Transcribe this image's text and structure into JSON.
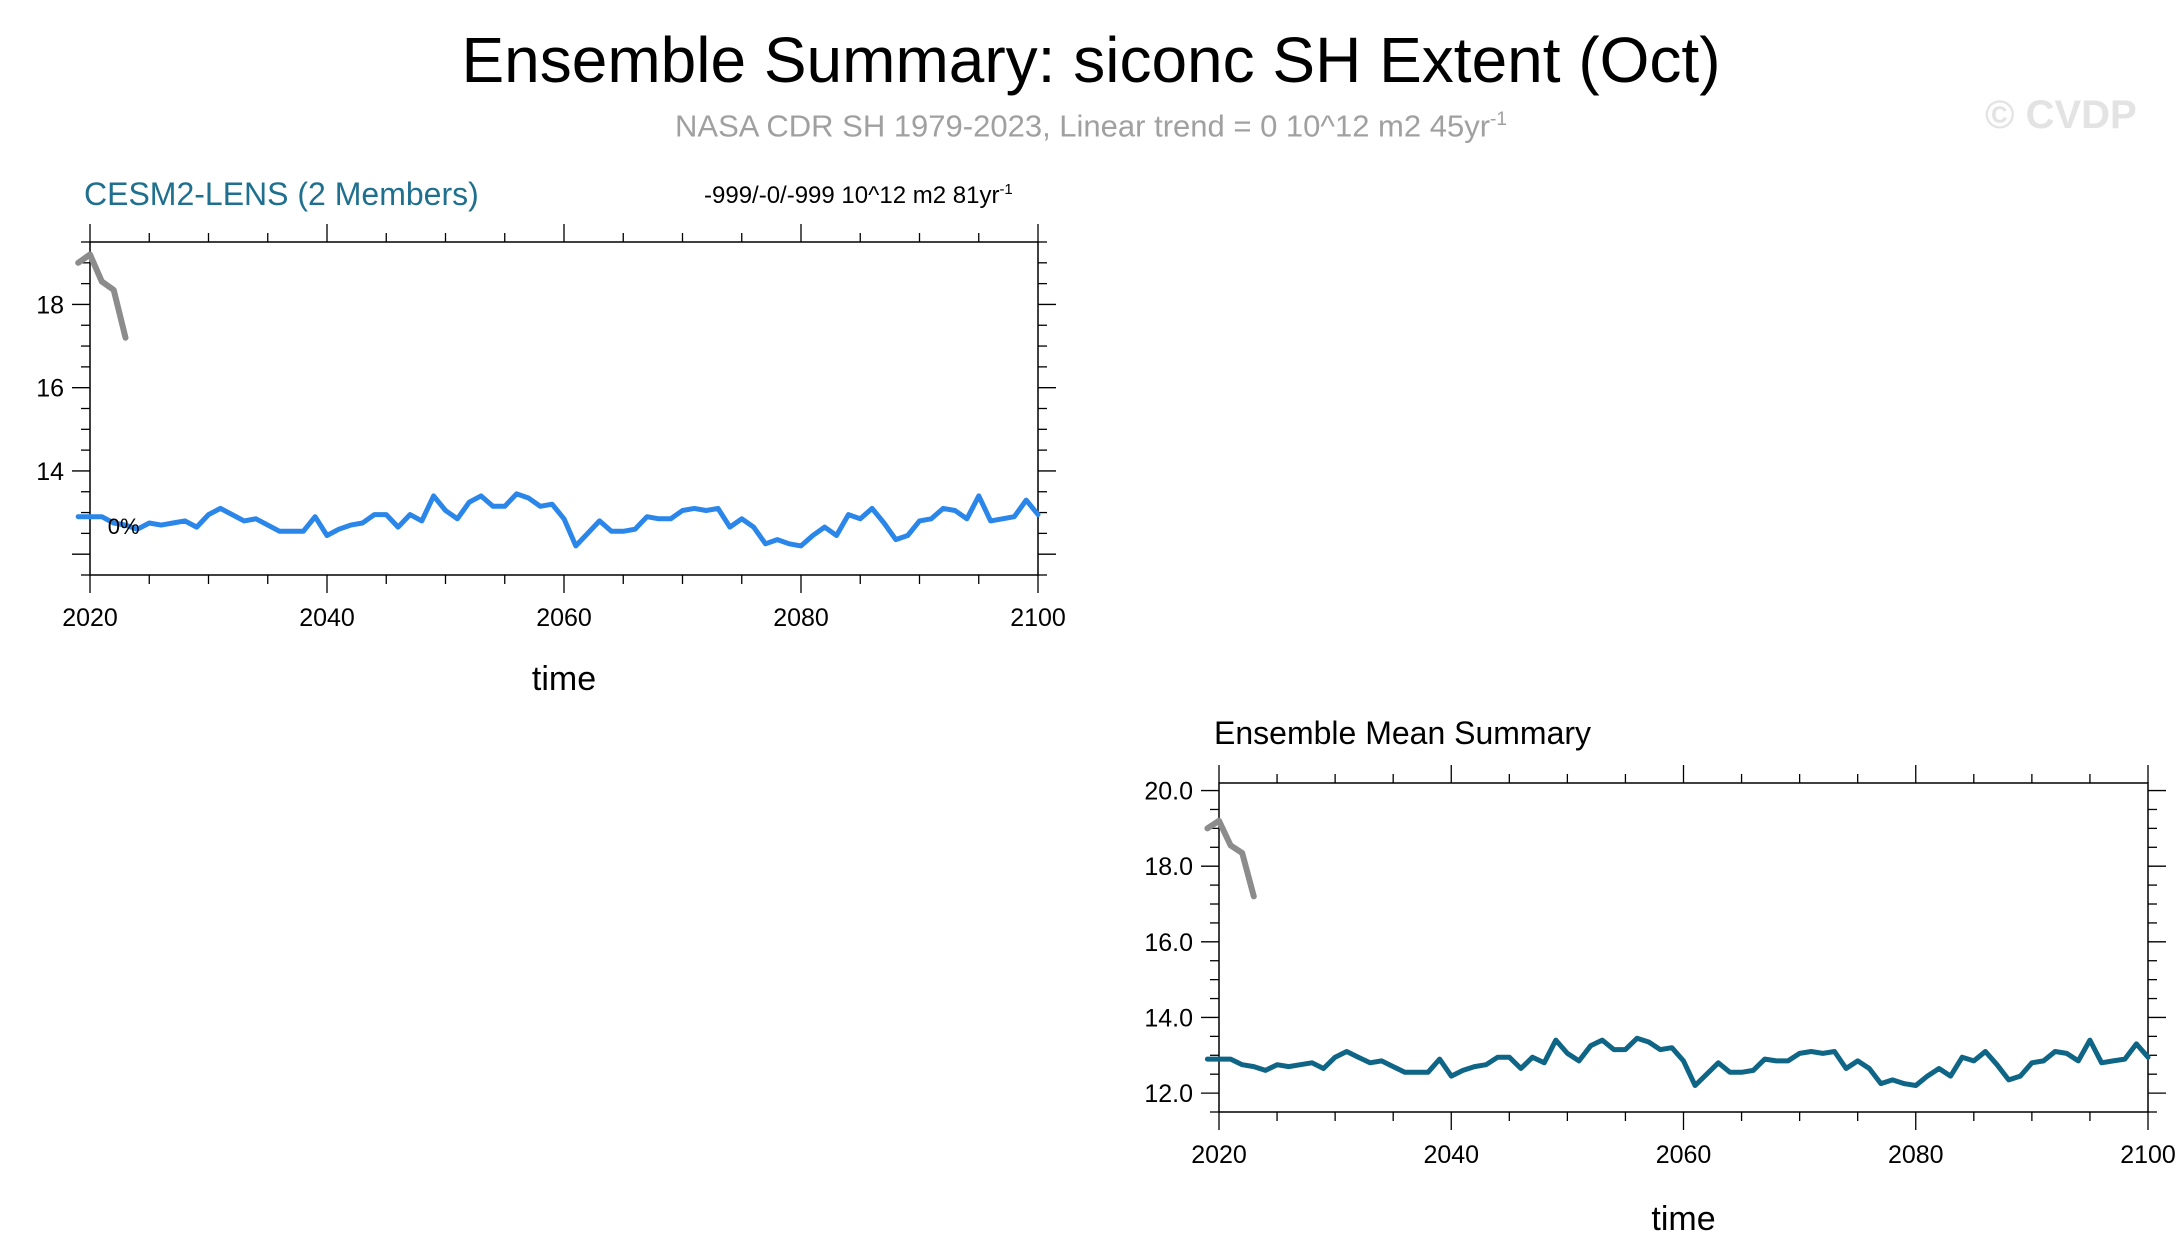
{
  "header": {
    "title": "Ensemble Summary: siconc SH Extent (Oct)",
    "subtitle": "NASA CDR SH 1979-2023, Linear trend = 0 10^12 m2 45yr",
    "subtitle_sup": "-1",
    "watermark": "© CVDP"
  },
  "colors": {
    "observations": "#8c8c8c",
    "member_series": "#2a86e8",
    "ensemble_mean": "#0f6585",
    "panel1_title": "#1f6f8f"
  },
  "chart_data": [
    {
      "type": "line",
      "title": "CESM2-LENS (2 Members)",
      "trend_label": "-999/-0/-999 10^12 m2 81yr",
      "trend_label_sup": "-1",
      "annotation": "0%",
      "xlabel": "time",
      "ylabel": "",
      "xlim": [
        2020,
        2100
      ],
      "ylim": [
        11.5,
        19.5
      ],
      "xticks": [
        "2020",
        "2040",
        "2060",
        "2080",
        "2100"
      ],
      "yticks": [
        "14",
        "16",
        "18"
      ],
      "grid": false,
      "series": [
        {
          "color": "#8c8c8c",
          "x": [
            2019,
            2020,
            2021,
            2022,
            2023
          ],
          "y": [
            19.0,
            19.2,
            18.55,
            18.35,
            17.2
          ]
        },
        {
          "color": "#2a86e8",
          "x": [
            2019,
            2020,
            2021,
            2022,
            2023,
            2024,
            2025,
            2026,
            2027,
            2028,
            2029,
            2030,
            2031,
            2032,
            2033,
            2034,
            2035,
            2036,
            2037,
            2038,
            2039,
            2040,
            2041,
            2042,
            2043,
            2044,
            2045,
            2046,
            2047,
            2048,
            2049,
            2050,
            2051,
            2052,
            2053,
            2054,
            2055,
            2056,
            2057,
            2058,
            2059,
            2060,
            2061,
            2062,
            2063,
            2064,
            2065,
            2066,
            2067,
            2068,
            2069,
            2070,
            2071,
            2072,
            2073,
            2074,
            2075,
            2076,
            2077,
            2078,
            2079,
            2080,
            2081,
            2082,
            2083,
            2084,
            2085,
            2086,
            2087,
            2088,
            2089,
            2090,
            2091,
            2092,
            2093,
            2094,
            2095,
            2096,
            2097,
            2098,
            2099,
            2100
          ],
          "y": [
            12.9,
            12.9,
            12.9,
            12.75,
            12.7,
            12.6,
            12.75,
            12.7,
            12.75,
            12.8,
            12.65,
            12.95,
            13.1,
            12.95,
            12.8,
            12.85,
            12.7,
            12.55,
            12.55,
            12.55,
            12.9,
            12.45,
            12.6,
            12.7,
            12.75,
            12.95,
            12.95,
            12.65,
            12.95,
            12.8,
            13.4,
            13.05,
            12.85,
            13.25,
            13.4,
            13.15,
            13.15,
            13.45,
            13.35,
            13.15,
            13.2,
            12.85,
            12.2,
            12.5,
            12.8,
            12.55,
            12.55,
            12.6,
            12.9,
            12.85,
            12.85,
            13.05,
            13.1,
            13.05,
            13.1,
            12.65,
            12.85,
            12.65,
            12.25,
            12.35,
            12.25,
            12.2,
            12.45,
            12.65,
            12.45,
            12.95,
            12.85,
            13.1,
            12.75,
            12.35,
            12.45,
            12.8,
            12.85,
            13.1,
            13.05,
            12.85,
            13.4,
            12.8,
            12.85,
            12.9,
            13.3,
            12.95
          ]
        }
      ]
    },
    {
      "type": "line",
      "title": "Ensemble Mean Summary",
      "xlabel": "time",
      "ylabel": "",
      "xlim": [
        2020,
        2100
      ],
      "ylim": [
        11.5,
        20.2
      ],
      "xticks": [
        "2020",
        "2040",
        "2060",
        "2080",
        "2100"
      ],
      "yticks": [
        "12.0",
        "14.0",
        "16.0",
        "18.0",
        "20.0"
      ],
      "grid": false,
      "series": [
        {
          "color": "#8c8c8c",
          "x": [
            2019,
            2020,
            2021,
            2022,
            2023
          ],
          "y": [
            19.0,
            19.2,
            18.55,
            18.35,
            17.2
          ]
        },
        {
          "color": "#0f6585",
          "x": [
            2019,
            2020,
            2021,
            2022,
            2023,
            2024,
            2025,
            2026,
            2027,
            2028,
            2029,
            2030,
            2031,
            2032,
            2033,
            2034,
            2035,
            2036,
            2037,
            2038,
            2039,
            2040,
            2041,
            2042,
            2043,
            2044,
            2045,
            2046,
            2047,
            2048,
            2049,
            2050,
            2051,
            2052,
            2053,
            2054,
            2055,
            2056,
            2057,
            2058,
            2059,
            2060,
            2061,
            2062,
            2063,
            2064,
            2065,
            2066,
            2067,
            2068,
            2069,
            2070,
            2071,
            2072,
            2073,
            2074,
            2075,
            2076,
            2077,
            2078,
            2079,
            2080,
            2081,
            2082,
            2083,
            2084,
            2085,
            2086,
            2087,
            2088,
            2089,
            2090,
            2091,
            2092,
            2093,
            2094,
            2095,
            2096,
            2097,
            2098,
            2099,
            2100
          ],
          "y": [
            12.9,
            12.9,
            12.9,
            12.75,
            12.7,
            12.6,
            12.75,
            12.7,
            12.75,
            12.8,
            12.65,
            12.95,
            13.1,
            12.95,
            12.8,
            12.85,
            12.7,
            12.55,
            12.55,
            12.55,
            12.9,
            12.45,
            12.6,
            12.7,
            12.75,
            12.95,
            12.95,
            12.65,
            12.95,
            12.8,
            13.4,
            13.05,
            12.85,
            13.25,
            13.4,
            13.15,
            13.15,
            13.45,
            13.35,
            13.15,
            13.2,
            12.85,
            12.2,
            12.5,
            12.8,
            12.55,
            12.55,
            12.6,
            12.9,
            12.85,
            12.85,
            13.05,
            13.1,
            13.05,
            13.1,
            12.65,
            12.85,
            12.65,
            12.25,
            12.35,
            12.25,
            12.2,
            12.45,
            12.65,
            12.45,
            12.95,
            12.85,
            13.1,
            12.75,
            12.35,
            12.45,
            12.8,
            12.85,
            13.1,
            13.05,
            12.85,
            13.4,
            12.8,
            12.85,
            12.9,
            13.3,
            12.95
          ]
        }
      ]
    }
  ]
}
